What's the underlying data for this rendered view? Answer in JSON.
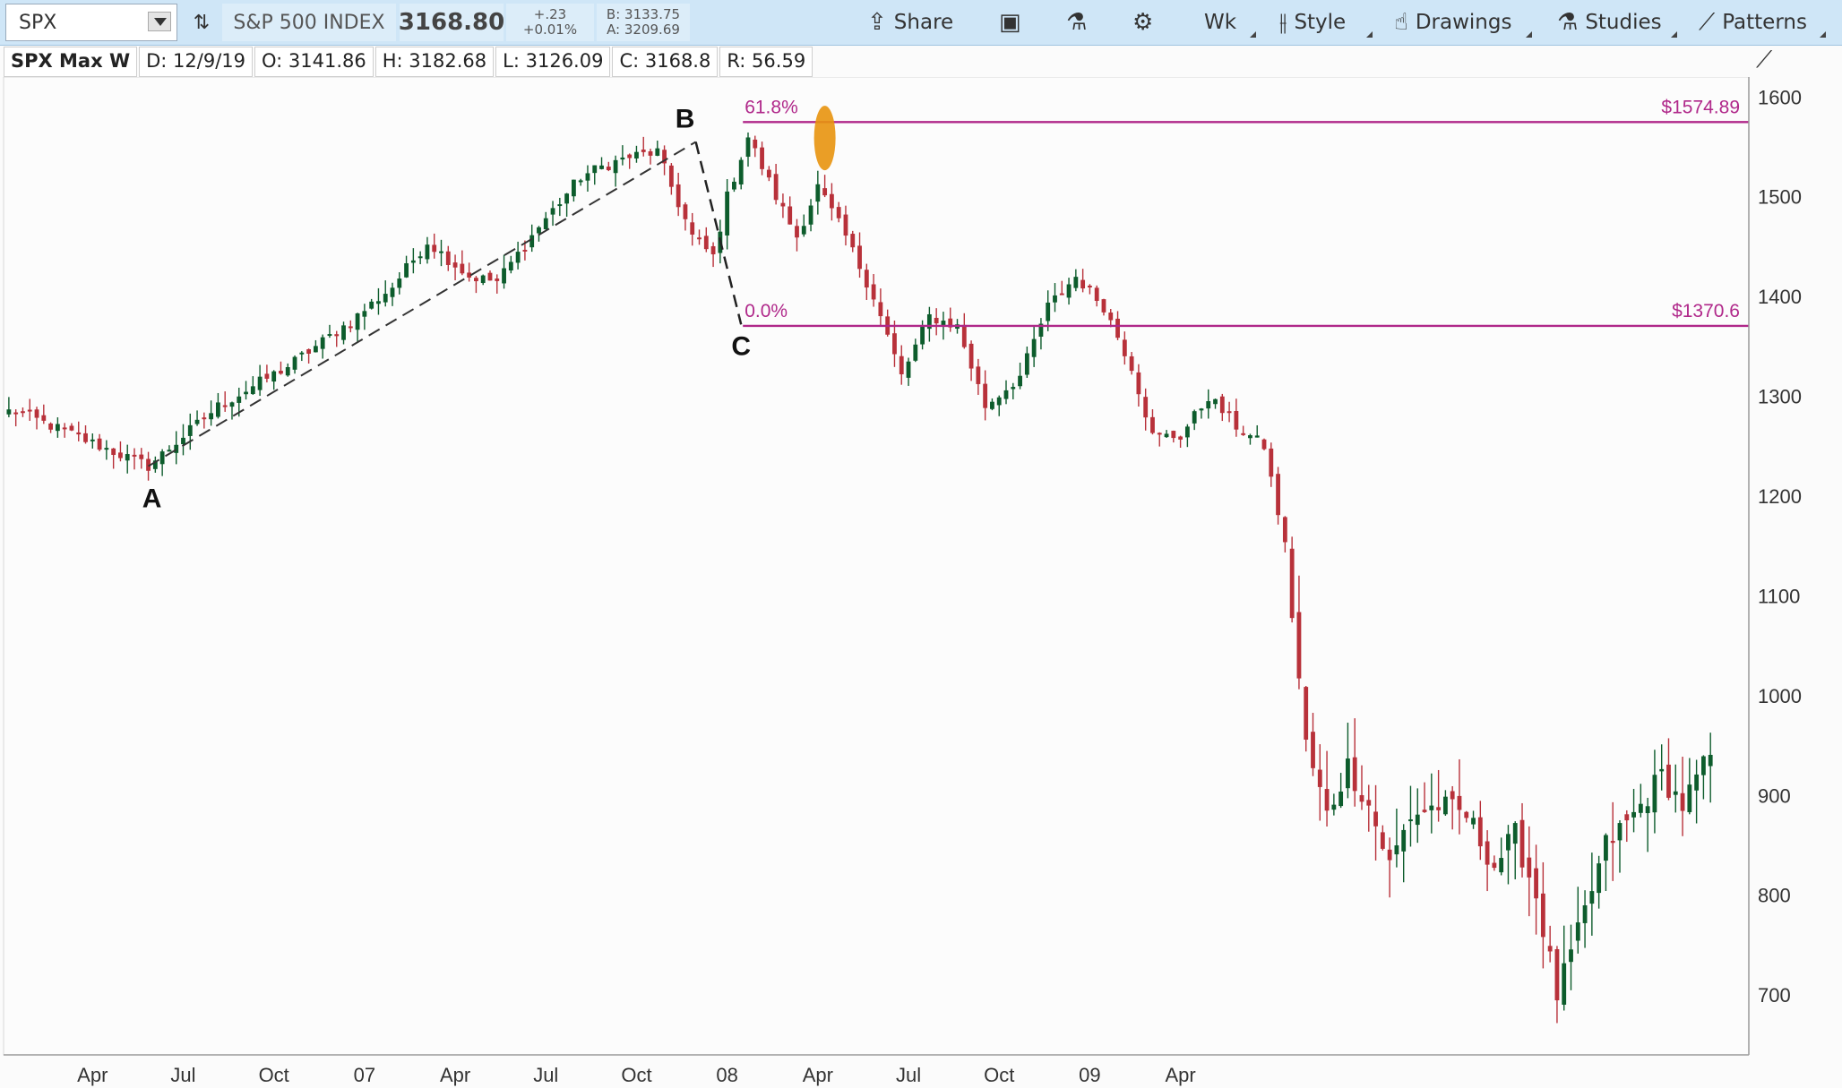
{
  "toolbar": {
    "symbol": "SPX",
    "index_name": "S&P 500 INDEX",
    "last": "3168.80",
    "change": "+.23",
    "change_pct": "+0.01%",
    "bid": "B: 3133.75",
    "ask": "A: 3209.69",
    "share_label": "Share",
    "period_label": "Wk",
    "style_label": "Style",
    "drawings_label": "Drawings",
    "studies_label": "Studies",
    "patterns_label": "Patterns"
  },
  "infobar": {
    "symbol": "SPX Max W",
    "date": "D: 12/9/19",
    "open": "O: 3141.86",
    "high": "H: 3182.68",
    "low": "L: 3126.09",
    "close": "C: 3168.8",
    "range": "R: 56.59"
  },
  "colors": {
    "up": "#0d5c2c",
    "down": "#b8313a",
    "fib": "#b0288a",
    "highlight": "#e8940e",
    "toolbar_bg": "#cfe6f7"
  },
  "chart_data": {
    "type": "candlestick",
    "interval": "weekly",
    "ylim": [
      640,
      1620
    ],
    "yticks": [
      700,
      800,
      900,
      1000,
      1100,
      1200,
      1300,
      1400,
      1500,
      1600
    ],
    "xtick_labels": [
      "Apr",
      "Jul",
      "Oct",
      "07",
      "Apr",
      "Jul",
      "Oct",
      "08",
      "Apr",
      "Jul",
      "Oct",
      "09",
      "Apr"
    ],
    "anchors": [
      [
        1,
        1285
      ],
      [
        20,
        1230
      ],
      [
        30,
        1290
      ],
      [
        40,
        1330
      ],
      [
        49,
        1375
      ],
      [
        55,
        1410
      ],
      [
        60,
        1455
      ],
      [
        66,
        1420
      ],
      [
        70,
        1415
      ],
      [
        76,
        1470
      ],
      [
        82,
        1520
      ],
      [
        85,
        1530
      ],
      [
        89,
        1540
      ],
      [
        93,
        1545
      ],
      [
        95,
        1510
      ],
      [
        98,
        1460
      ],
      [
        101,
        1440
      ],
      [
        103,
        1500
      ],
      [
        106,
        1560
      ],
      [
        110,
        1500
      ],
      [
        113,
        1460
      ],
      [
        116,
        1510
      ],
      [
        120,
        1460
      ],
      [
        124,
        1400
      ],
      [
        128,
        1320
      ],
      [
        132,
        1380
      ],
      [
        136,
        1370
      ],
      [
        140,
        1290
      ],
      [
        145,
        1320
      ],
      [
        149,
        1390
      ],
      [
        153,
        1420
      ],
      [
        157,
        1390
      ],
      [
        161,
        1330
      ],
      [
        164,
        1260
      ],
      [
        168,
        1260
      ],
      [
        172,
        1300
      ],
      [
        176,
        1270
      ],
      [
        180,
        1250
      ],
      [
        183,
        1150
      ],
      [
        186,
        950
      ],
      [
        189,
        880
      ],
      [
        192,
        930
      ],
      [
        195,
        890
      ],
      [
        198,
        830
      ],
      [
        201,
        880
      ],
      [
        205,
        890
      ],
      [
        209,
        880
      ],
      [
        213,
        830
      ],
      [
        216,
        860
      ],
      [
        219,
        800
      ],
      [
        222,
        700
      ],
      [
        225,
        760
      ],
      [
        229,
        850
      ],
      [
        233,
        880
      ],
      [
        237,
        920
      ],
      [
        240,
        890
      ],
      [
        244,
        940
      ]
    ],
    "fibonacci": {
      "level_0": {
        "label": "0.0%",
        "price_label": "$1370.6",
        "value": 1370.6
      },
      "level_618": {
        "label": "61.8%",
        "price_label": "$1574.89",
        "value": 1574.89
      }
    },
    "abc_points": {
      "A": {
        "label": "A",
        "bar": 20,
        "price": 1230
      },
      "B": {
        "label": "B",
        "bar": 98.5,
        "price": 1555
      },
      "C": {
        "label": "C",
        "bar": 105,
        "price": 1372
      }
    },
    "highlight": {
      "bar": 117,
      "price": 1575
    }
  }
}
